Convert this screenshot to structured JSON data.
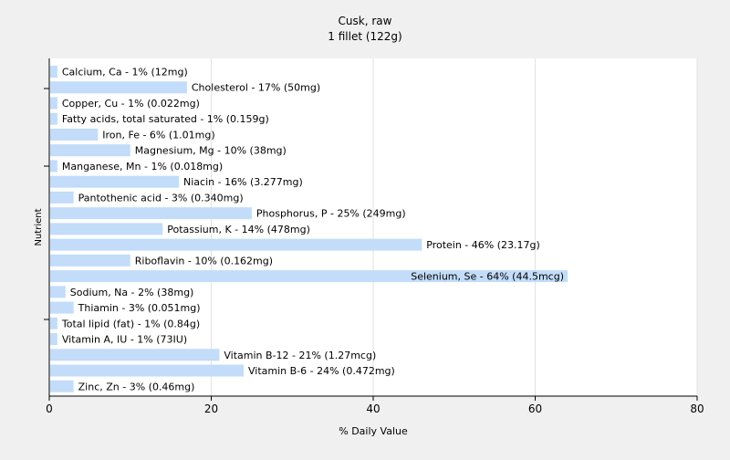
{
  "chart_data": {
    "type": "bar",
    "orientation": "horizontal",
    "title": "Cusk, raw",
    "subtitle": "1 fillet (122g)",
    "xlabel": "% Daily Value",
    "ylabel": "Nutrient",
    "xlim": [
      0,
      80
    ],
    "xticks": [
      0,
      20,
      40,
      60,
      80
    ],
    "grid": true,
    "colors": {
      "bar": "#c2dcf9",
      "plot_bg": "#ffffff",
      "page_bg": "#f0f0f0",
      "grid": "#e2e2e2",
      "axis": "#000000",
      "text": "#000000"
    },
    "categories": [
      "Calcium, Ca",
      "Cholesterol",
      "Copper, Cu",
      "Fatty acids, total saturated",
      "Iron, Fe",
      "Magnesium, Mg",
      "Manganese, Mn",
      "Niacin",
      "Pantothenic acid",
      "Phosphorus, P",
      "Potassium, K",
      "Protein",
      "Riboflavin",
      "Selenium, Se",
      "Sodium, Na",
      "Thiamin",
      "Total lipid (fat)",
      "Vitamin A, IU",
      "Vitamin B-12",
      "Vitamin B-6",
      "Zinc, Zn"
    ],
    "values": [
      1,
      17,
      1,
      1,
      6,
      10,
      1,
      16,
      3,
      25,
      14,
      46,
      10,
      64,
      2,
      3,
      1,
      1,
      21,
      24,
      3
    ],
    "labels": [
      "Calcium, Ca - 1% (12mg)",
      "Cholesterol - 17% (50mg)",
      "Copper, Cu - 1% (0.022mg)",
      "Fatty acids, total saturated - 1% (0.159g)",
      "Iron, Fe - 6% (1.01mg)",
      "Magnesium, Mg - 10% (38mg)",
      "Manganese, Mn - 1% (0.018mg)",
      "Niacin - 16% (3.277mg)",
      "Pantothenic acid - 3% (0.340mg)",
      "Phosphorus, P - 25% (249mg)",
      "Potassium, K - 14% (478mg)",
      "Protein - 46% (23.17g)",
      "Riboflavin - 10% (0.162mg)",
      "Selenium, Se - 64% (44.5mcg)",
      "Sodium, Na - 2% (38mg)",
      "Thiamin - 3% (0.051mg)",
      "Total lipid (fat) - 1% (0.84g)",
      "Vitamin A, IU - 1% (73IU)",
      "Vitamin B-12 - 21% (1.27mcg)",
      "Vitamin B-6 - 24% (0.472mg)",
      "Zinc, Zn - 3% (0.46mg)"
    ]
  }
}
